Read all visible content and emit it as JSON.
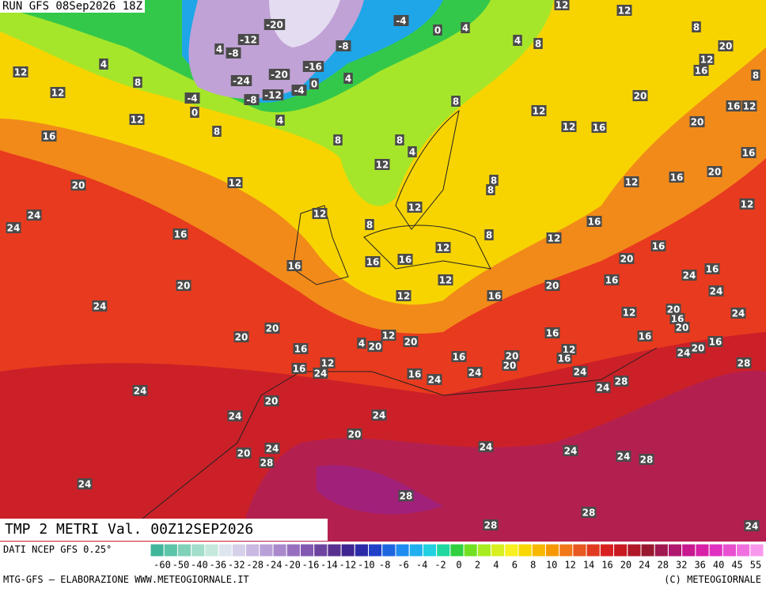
{
  "header": {
    "run": "RUN GFS 08Sep2026 18Z",
    "field": "TMP 2 METRI Val. 00Z12SEP2026"
  },
  "footer": {
    "source": "DATI NCEP GFS 0.25°",
    "credit": "MTG-GFS — ELABORAZIONE WWW.METEOGIORNALE.IT",
    "copyright": "(C) METEOGIORNALE"
  },
  "map_labels": [
    -20,
    -4,
    0,
    4,
    4,
    8,
    12,
    12,
    8,
    20,
    12,
    16,
    8,
    20,
    16,
    12,
    12,
    12,
    16,
    20,
    16,
    20,
    16,
    12,
    8,
    8,
    -12,
    -8,
    4,
    -24,
    -20,
    -16,
    0,
    -4,
    -12,
    -8,
    -4,
    0,
    -8,
    4,
    4,
    8,
    8,
    12,
    4,
    8,
    12,
    12,
    8,
    16,
    20,
    24,
    24,
    12,
    16,
    12,
    8,
    4,
    12,
    8,
    12,
    16,
    16,
    16,
    12,
    8,
    12,
    16,
    16,
    20,
    12,
    12,
    16,
    24,
    20,
    24,
    12,
    16,
    20,
    16,
    24,
    20,
    20,
    16,
    4,
    20,
    12,
    20,
    16,
    12,
    20,
    16,
    20,
    24,
    16,
    24,
    20,
    16,
    12,
    16,
    20,
    20,
    16,
    16,
    24,
    12,
    16,
    24,
    24,
    24,
    28,
    24,
    28,
    24,
    20,
    24,
    24,
    20,
    24,
    20,
    28,
    24,
    24,
    24,
    28,
    24,
    28,
    28,
    28,
    24
  ],
  "colorbar": {
    "colors": [
      "#3fb59a",
      "#5cc4a8",
      "#7fd1b8",
      "#a3ddcb",
      "#c5e8dc",
      "#dde6ee",
      "#d6d0ea",
      "#c9b8e2",
      "#b9a0d8",
      "#a988cc",
      "#9670bf",
      "#8258b0",
      "#6d43a0",
      "#58318f",
      "#3f2590",
      "#2a2aa8",
      "#2040c8",
      "#1e66e0",
      "#1e8cf0",
      "#20b0f0",
      "#22d0e0",
      "#20d8a0",
      "#30d040",
      "#70e020",
      "#a8ec20",
      "#d8f020",
      "#f8f020",
      "#f8d800",
      "#f8b800",
      "#f89800",
      "#f07818",
      "#e85820",
      "#e03a20",
      "#d82020",
      "#c81820",
      "#b01828",
      "#981830",
      "#a01850",
      "#b01870",
      "#c81890",
      "#d820a8",
      "#e030c0",
      "#e850d0",
      "#f070e0",
      "#f898ec"
    ],
    "ticks": [
      -60,
      -50,
      -40,
      -36,
      -32,
      -28,
      -24,
      -20,
      -16,
      -14,
      -12,
      -10,
      -8,
      -6,
      -4,
      -2,
      0,
      2,
      4,
      6,
      8,
      10,
      12,
      14,
      16,
      20,
      24,
      28,
      32,
      36,
      40,
      45,
      55
    ]
  }
}
